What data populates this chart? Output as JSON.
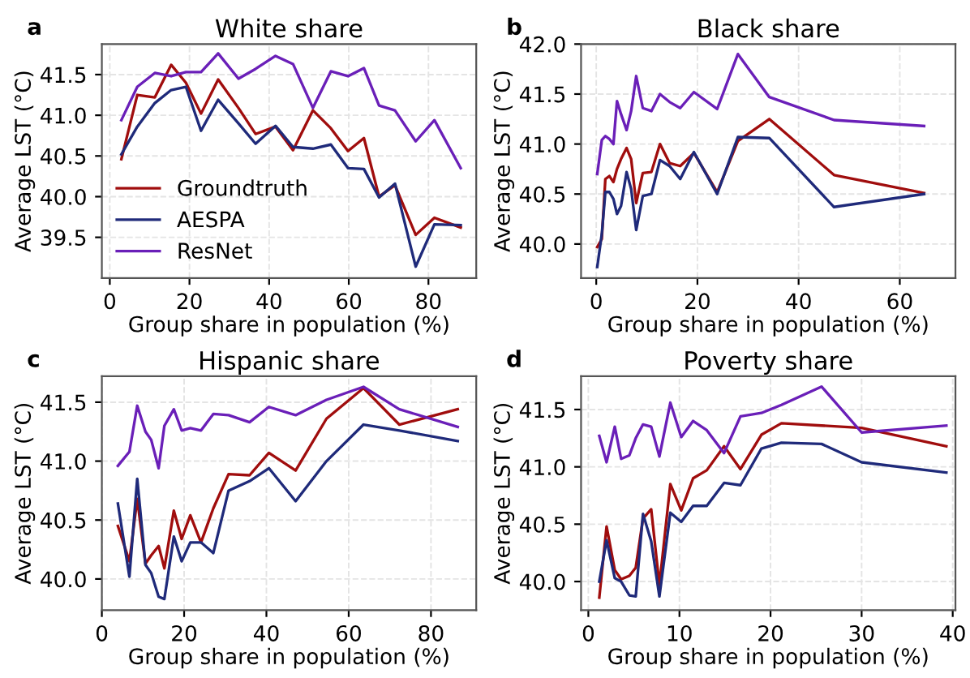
{
  "chart_data": [
    {
      "type": "line",
      "title": "White share",
      "annotations": [
        "a"
      ],
      "xlabel": "Group share in population (%)",
      "ylabel": "Average LST (°C)",
      "xlim": [
        -2,
        92
      ],
      "ylim": [
        39.0,
        41.875
      ],
      "xticks": [
        0,
        20,
        40,
        60,
        80
      ],
      "yticks": [
        39.5,
        {
          "value": 40,
          "label": "40.0"
        },
        40.5,
        {
          "value": 41,
          "label": "41.0"
        },
        41.5
      ],
      "grid": true,
      "legend": "bottom left",
      "x": [
        2.9,
        6.9,
        11.3,
        15.4,
        19.1,
        22.9,
        27.2,
        32.3,
        36.6,
        41.6,
        46,
        51,
        55.5,
        59.8,
        63.8,
        67.6,
        71.6,
        76.8,
        81.5,
        88.1
      ],
      "series": [
        {
          "name": "Groundtruth",
          "color": "#a00d0d",
          "values": [
            40.46,
            41.25,
            41.22,
            41.62,
            41.4,
            41.02,
            41.44,
            41.09,
            40.77,
            40.86,
            40.57,
            41.06,
            40.84,
            40.56,
            40.72,
            40.0,
            40.14,
            39.53,
            39.74,
            39.62
          ]
        },
        {
          "name": "AESPA",
          "color": "#1f2a7a",
          "values": [
            40.52,
            40.86,
            41.15,
            41.31,
            41.35,
            40.81,
            41.19,
            40.9,
            40.65,
            40.87,
            40.61,
            40.59,
            40.64,
            40.35,
            40.34,
            39.99,
            40.16,
            39.14,
            39.66,
            39.65
          ]
        },
        {
          "name": "ResNet",
          "color": "#6a1fb8",
          "values": [
            40.94,
            41.35,
            41.52,
            41.48,
            41.53,
            41.53,
            41.76,
            41.45,
            41.57,
            41.73,
            41.63,
            41.09,
            41.54,
            41.48,
            41.58,
            41.12,
            41.06,
            40.68,
            40.94,
            40.35
          ]
        }
      ]
    },
    {
      "type": "line",
      "title": "Black share",
      "annotations": [
        "b"
      ],
      "xlabel": "Group share in population (%)",
      "ylabel": "Average LST (°C)",
      "xlim": [
        -3,
        71
      ],
      "ylim": [
        39.66,
        42.0
      ],
      "xticks": [
        0,
        20,
        40,
        60
      ],
      "yticks": [
        {
          "value": 40,
          "label": "40.0"
        },
        40.5,
        {
          "value": 41,
          "label": "41.0"
        },
        41.5,
        {
          "value": 42,
          "label": "42.0"
        }
      ],
      "grid": true,
      "x": [
        0.2,
        1.1,
        1.8,
        2.6,
        3.4,
        4.1,
        4.9,
        6.0,
        6.9,
        7.9,
        9.2,
        10.9,
        12.6,
        14.5,
        16.6,
        19.3,
        23.9,
        28,
        34.2,
        47,
        64.8
      ],
      "series": [
        {
          "color": "#a00d0d",
          "values": [
            39.97,
            40.05,
            40.65,
            40.68,
            40.62,
            40.75,
            40.85,
            40.96,
            40.85,
            40.41,
            40.71,
            40.72,
            41.0,
            40.81,
            40.78,
            40.91,
            40.52,
            41.03,
            41.25,
            40.69,
            40.51
          ]
        },
        {
          "color": "#1f2a7a",
          "values": [
            39.77,
            40.1,
            40.52,
            40.52,
            40.45,
            40.3,
            40.38,
            40.72,
            40.55,
            40.14,
            40.48,
            40.5,
            40.84,
            40.78,
            40.65,
            40.92,
            40.5,
            41.07,
            41.06,
            40.37,
            40.5
          ]
        },
        {
          "color": "#6a1fb8",
          "values": [
            40.7,
            41.04,
            41.08,
            41.05,
            41.0,
            41.43,
            41.3,
            41.14,
            41.33,
            41.68,
            41.36,
            41.33,
            41.5,
            41.42,
            41.36,
            41.52,
            41.35,
            41.9,
            41.47,
            41.24,
            41.18
          ]
        }
      ]
    },
    {
      "type": "line",
      "title": "Hispanic share",
      "annotations": [
        "c"
      ],
      "xlabel": "Group share in population (%)",
      "ylabel": "Average LST (°C)",
      "xlim": [
        0,
        91
      ],
      "ylim": [
        39.735,
        41.72
      ],
      "xticks": [
        0,
        20,
        40,
        60,
        80
      ],
      "yticks": [
        {
          "value": 40,
          "label": "40.0"
        },
        40.5,
        {
          "value": 41,
          "label": "41.0"
        },
        41.5
      ],
      "grid": true,
      "x": [
        3.9,
        6.7,
        8.6,
        10.6,
        12,
        13.8,
        15.2,
        17.5,
        19.4,
        21.5,
        24.1,
        27.1,
        30.8,
        35.9,
        40.6,
        47.1,
        54.6,
        63.6,
        72.3,
        86.5
      ],
      "series": [
        {
          "color": "#a00d0d",
          "values": [
            40.45,
            40.15,
            40.68,
            40.13,
            40.2,
            40.28,
            40.09,
            40.58,
            40.34,
            40.54,
            40.31,
            40.6,
            40.89,
            40.88,
            41.07,
            40.92,
            41.36,
            41.62,
            41.31,
            41.44
          ]
        },
        {
          "color": "#1f2a7a",
          "values": [
            40.64,
            40.02,
            40.85,
            40.12,
            40.05,
            39.85,
            39.83,
            40.36,
            40.15,
            40.31,
            40.31,
            40.22,
            40.75,
            40.83,
            40.94,
            40.66,
            41.0,
            41.31,
            41.26,
            41.17
          ]
        },
        {
          "color": "#6a1fb8",
          "values": [
            40.96,
            41.08,
            41.47,
            41.25,
            41.18,
            40.94,
            41.3,
            41.44,
            41.26,
            41.28,
            41.26,
            41.4,
            41.39,
            41.33,
            41.46,
            41.39,
            41.52,
            41.63,
            41.44,
            41.29
          ]
        }
      ]
    },
    {
      "type": "line",
      "title": "Poverty share",
      "annotations": [
        "d"
      ],
      "xlabel": "Group share in population (%)",
      "ylabel": "Average LST (°C)",
      "xlim": [
        -0.8,
        40.3
      ],
      "ylim": [
        39.75,
        41.79
      ],
      "xticks": [
        0,
        10,
        20,
        30,
        40
      ],
      "yticks": [
        {
          "value": 40,
          "label": "40.0"
        },
        40.5,
        {
          "value": 41,
          "label": "41.0"
        },
        41.5
      ],
      "grid": true,
      "x": [
        1.2,
        2.0,
        2.9,
        3.6,
        4.5,
        5.2,
        6.0,
        6.9,
        7.8,
        9.0,
        10.2,
        11.5,
        13.0,
        14.9,
        16.7,
        19.0,
        21.2,
        25.6,
        30.0,
        39.3
      ],
      "series": [
        {
          "color": "#a00d0d",
          "values": [
            39.86,
            40.48,
            40.1,
            40.02,
            40.05,
            40.12,
            40.55,
            40.63,
            39.97,
            40.85,
            40.62,
            40.9,
            40.97,
            41.18,
            40.98,
            41.28,
            41.38,
            41.36,
            41.34,
            41.18
          ]
        },
        {
          "color": "#1f2a7a",
          "values": [
            40.0,
            40.36,
            40.03,
            40.0,
            39.88,
            39.87,
            40.59,
            40.35,
            39.87,
            40.6,
            40.52,
            40.66,
            40.66,
            40.86,
            40.84,
            41.16,
            41.21,
            41.2,
            41.04,
            40.95
          ]
        },
        {
          "color": "#6a1fb8",
          "values": [
            41.27,
            41.04,
            41.35,
            41.07,
            41.1,
            41.25,
            41.37,
            41.35,
            41.09,
            41.56,
            41.26,
            41.4,
            41.32,
            41.12,
            41.44,
            41.47,
            41.54,
            41.7,
            41.3,
            41.36
          ]
        }
      ]
    }
  ]
}
